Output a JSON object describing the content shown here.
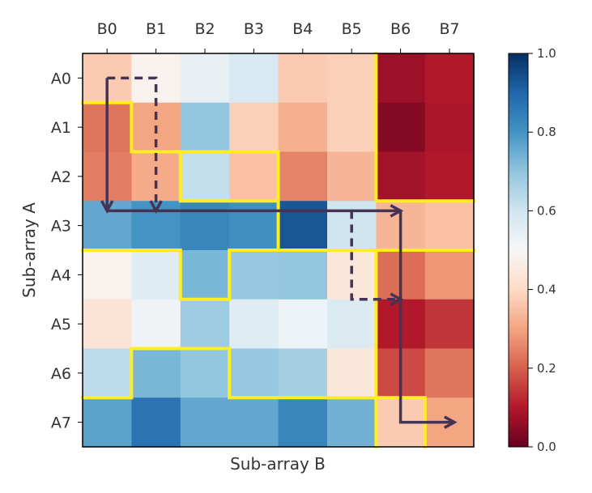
{
  "chart_data": {
    "type": "heatmap",
    "title": "",
    "xlabel": "Sub-array B",
    "ylabel": "Sub-array A",
    "x_ticks": [
      "B0",
      "B1",
      "B2",
      "B3",
      "B4",
      "B5",
      "B6",
      "B7"
    ],
    "y_ticks": [
      "A0",
      "A1",
      "A2",
      "A3",
      "A4",
      "A5",
      "A6",
      "A7"
    ],
    "x_tick_position": "top",
    "value_range": [
      0.0,
      1.0
    ],
    "colormap": "RdBu",
    "colorbar_ticks": [
      "0.0",
      "0.2",
      "0.4",
      "0.6",
      "0.8",
      "1.0"
    ],
    "values": [
      [
        0.37,
        0.48,
        0.54,
        0.58,
        0.37,
        0.38,
        0.07,
        0.1
      ],
      [
        0.23,
        0.3,
        0.7,
        0.38,
        0.32,
        0.38,
        0.04,
        0.09
      ],
      [
        0.24,
        0.31,
        0.62,
        0.35,
        0.25,
        0.33,
        0.08,
        0.1
      ],
      [
        0.76,
        0.8,
        0.83,
        0.81,
        0.93,
        0.6,
        0.33,
        0.35
      ],
      [
        0.48,
        0.56,
        0.73,
        0.69,
        0.7,
        0.44,
        0.22,
        0.28
      ],
      [
        0.43,
        0.52,
        0.68,
        0.56,
        0.53,
        0.57,
        0.1,
        0.14
      ],
      [
        0.63,
        0.73,
        0.7,
        0.69,
        0.67,
        0.44,
        0.17,
        0.23
      ],
      [
        0.77,
        0.87,
        0.76,
        0.76,
        0.83,
        0.74,
        0.37,
        0.3
      ]
    ],
    "partition_color": "#ffee22",
    "arrow_color": "#443355",
    "grid": false
  }
}
